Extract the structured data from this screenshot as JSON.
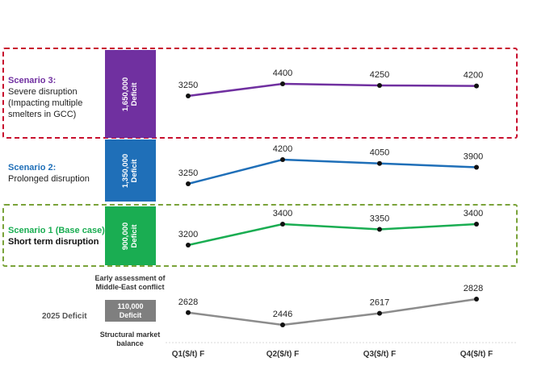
{
  "colors": {
    "purple": "#7030a0",
    "blue": "#1f6fb8",
    "green": "#1aad52",
    "gray": "#8c8c8c",
    "red_dash": "#c8102e",
    "green_dash": "#7aa33a"
  },
  "scenario3": {
    "title": "Scenario 3:",
    "line1": "Severe disruption",
    "line2": "(Impacting multiple",
    "line3": "smelters in GCC)",
    "bar_value": "1,650,000",
    "bar_unit": "Deficit"
  },
  "scenario2": {
    "title": "Scenario 2:",
    "line1": "Prolonged disruption",
    "bar_value": "1,350,000",
    "bar_unit": "Deficit"
  },
  "scenario1": {
    "title": "Scenario 1 (Base case):",
    "line1": "Short term disruption",
    "bar_value": "900,000",
    "bar_unit": "Deficit"
  },
  "baseline": {
    "label": "2025 Deficit",
    "box_value": "110,000",
    "box_unit": "Deficit",
    "note_top_1": "Early assessment of",
    "note_top_2": "Middle-East conflict",
    "note_bottom_1": "Structural market",
    "note_bottom_2": "balance"
  },
  "chart_data": {
    "type": "line",
    "categories": [
      "Q1($/t) F",
      "Q2($/t) F",
      "Q3($/t) F",
      "Q4($/t) F"
    ],
    "series": [
      {
        "name": "Scenario 3",
        "values": [
          3250,
          4400,
          4250,
          4200
        ],
        "color": "#7030a0"
      },
      {
        "name": "Scenario 2",
        "values": [
          3250,
          4200,
          4050,
          3900
        ],
        "color": "#1f6fb8"
      },
      {
        "name": "Scenario 1 (Base case)",
        "values": [
          3200,
          3400,
          3350,
          3400
        ],
        "color": "#1aad52"
      },
      {
        "name": "2025",
        "values": [
          2628,
          2446,
          2617,
          2828
        ],
        "color": "#8c8c8c"
      }
    ]
  }
}
